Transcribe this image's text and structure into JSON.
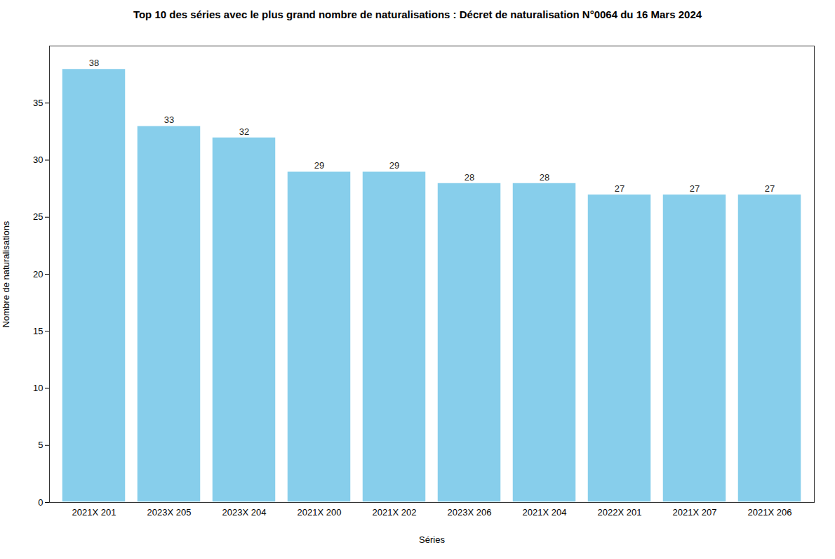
{
  "chart_data": {
    "type": "bar",
    "title": "Top 10 des séries avec le plus grand nombre de naturalisations : Décret de naturalisation N°0064 du 16 Mars 2024",
    "categories": [
      "2021X 201",
      "2023X 205",
      "2023X 204",
      "2021X 200",
      "2021X 202",
      "2023X 206",
      "2021X 204",
      "2022X 201",
      "2021X 207",
      "2021X 206"
    ],
    "values": [
      38,
      33,
      32,
      29,
      29,
      28,
      28,
      27,
      27,
      27
    ],
    "color": "#87CEEB",
    "xlabel": "Séries",
    "ylabel": "Nombre de naturalisations",
    "ylim": [
      0,
      40
    ],
    "yticks": [
      0,
      5,
      10,
      15,
      20,
      25,
      30,
      35
    ],
    "grid": false,
    "data_labels": true
  }
}
